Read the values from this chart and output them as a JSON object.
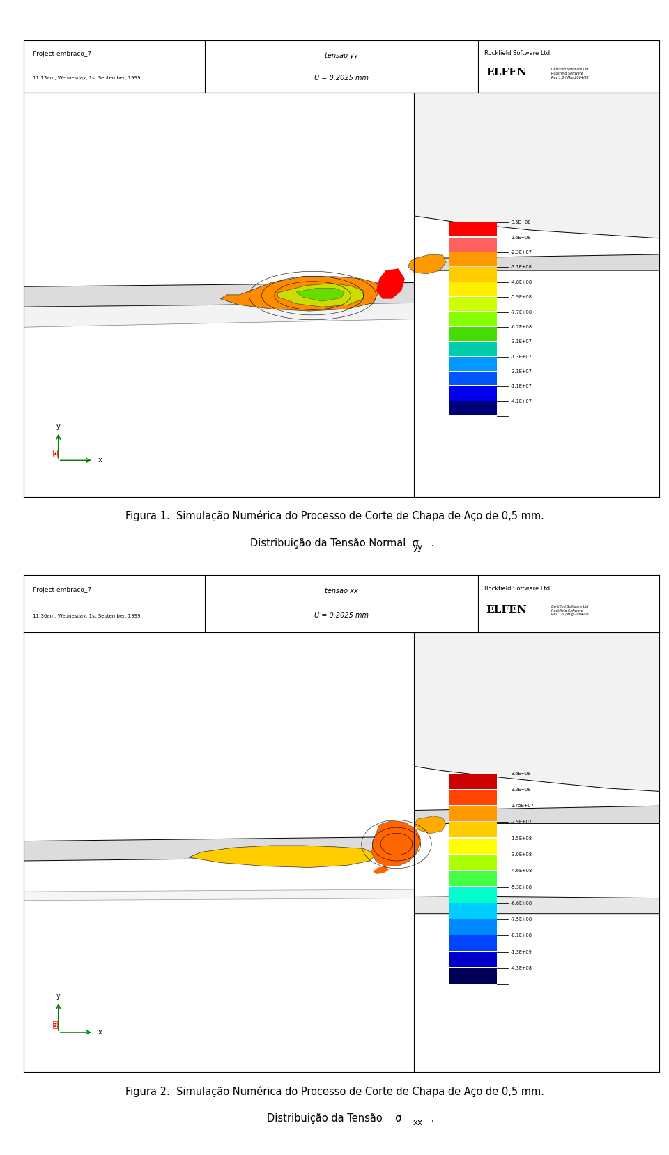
{
  "fig_width": 9.6,
  "fig_height": 16.57,
  "background_color": "#ffffff",
  "header1": {
    "left_text_line1": "Project embraco_7",
    "left_text_line2": "11:13am, Wednesday, 1st September, 1999",
    "center_text_line1": "tensao yy",
    "center_text_line2": "U = 0.2025 mm",
    "right_text_line1": "Rockfield Software Ltd.",
    "right_text_line2": "ELFEN"
  },
  "header2": {
    "left_text_line1": "Project embraco_7",
    "left_text_line2": "11:36am, Wednesday, 1st September, 1999",
    "center_text_line1": "tensao xx",
    "center_text_line2": "U = 0.2025 mm",
    "right_text_line1": "Rockfield Software Ltd.",
    "right_text_line2": "ELFEN"
  },
  "legend1_colors": [
    "#ff0000",
    "#ff6060",
    "#ff9900",
    "#ffcc00",
    "#ffee00",
    "#ccff00",
    "#88ff00",
    "#44dd00",
    "#00ccaa",
    "#0099ff",
    "#0055ff",
    "#0000ee",
    "#000077"
  ],
  "legend1_labels": [
    "3.5E+08",
    "1.6E+08",
    "-2.3E+07",
    "-3.1E+08",
    "-4.8E+08",
    "-5.9E+08",
    "-7.7E+08",
    "-6.7E+08",
    "-3.1E+07",
    "-1.3E+07",
    "-3.1E+07",
    "-1.1E+07",
    "-4.1E+07"
  ],
  "legend2_colors": [
    "#cc0000",
    "#ff4400",
    "#ff9900",
    "#ffcc00",
    "#ffff00",
    "#aaff00",
    "#44ff44",
    "#00ffcc",
    "#00ccff",
    "#0088ff",
    "#0044ff",
    "#0000cc",
    "#000055"
  ],
  "legend2_labels": [
    "3.6E+08",
    "3.2E+08",
    "1.75E+07",
    "-2.9E+07",
    "-1.5E+08",
    "-3.0E+08",
    "-4.6E+08",
    "-5.3E+08",
    "-6.6E+08",
    "-7.5E+08",
    "-8.1E+08",
    "-1.3E+09",
    "-4.3E+08"
  ],
  "caption1_line1": "Figura 1.  Simulação Numérica do Processo de Corte de Chapa de Aço de 0,5 mm.",
  "caption1_line2": "Distribuição da Tensão Normal  σ",
  "caption1_sub": "yy",
  "caption2_line1": "Figura 2.  Simulação Numérica do Processo de Corte de Chapa de Aço de 0,5 mm.",
  "caption2_line2": "Distribuição da Tensão    σ",
  "caption2_sub": "xx"
}
